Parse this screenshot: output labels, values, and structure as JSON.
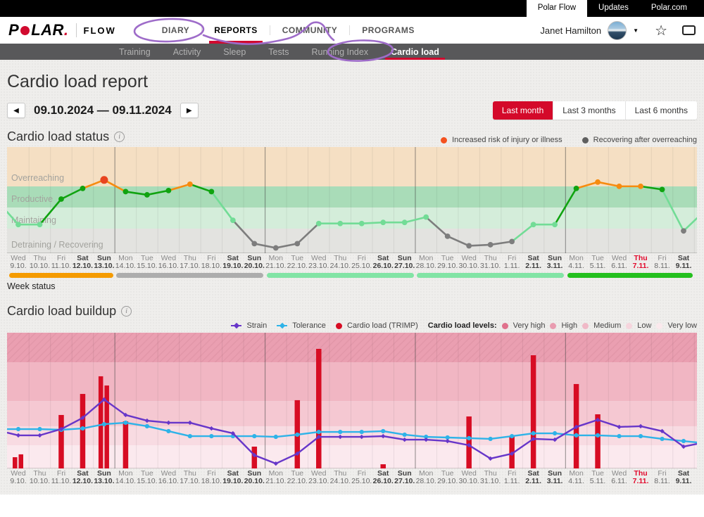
{
  "topbar": {
    "tabs": [
      "Polar Flow",
      "Updates",
      "Polar.com"
    ]
  },
  "header": {
    "logo_p": "P",
    "logo_rest": "LAR",
    "logo_dot": ".",
    "brand_sub": "FLOW",
    "nav": [
      {
        "label": "DIARY",
        "active": false
      },
      {
        "label": "REPORTS",
        "active": true
      },
      {
        "label": "COMMUNITY",
        "active": false
      },
      {
        "label": "PROGRAMS",
        "active": false
      }
    ],
    "user": "Janet Hamilton"
  },
  "icons": {
    "prev": "◀",
    "next": "▶",
    "star": "☆",
    "dropdown": "▼",
    "info": "i"
  },
  "subnav": {
    "items": [
      {
        "label": "Training",
        "active": false
      },
      {
        "label": "Activity",
        "active": false
      },
      {
        "label": "Sleep",
        "active": false
      },
      {
        "label": "Tests",
        "active": false
      },
      {
        "label": "Running Index",
        "active": false
      },
      {
        "label": "Cardio load",
        "active": true
      }
    ]
  },
  "page": {
    "title": "Cardio load report"
  },
  "daterange": {
    "value": "09.10.2024 — 09.11.2024"
  },
  "range_buttons": [
    {
      "label": "Last month",
      "active": true
    },
    {
      "label": "Last 3 months",
      "active": false
    },
    {
      "label": "Last 6 months",
      "active": false
    }
  ],
  "status_section": {
    "title": "Cardio load status",
    "legend": [
      {
        "label": "Increased risk of injury or illness",
        "color": "#f4511e"
      },
      {
        "label": "Recovering after overreaching",
        "color": "#5f5f5f"
      }
    ],
    "week_status_label": "Week status"
  },
  "buildup_section": {
    "title": "Cardio load buildup",
    "series_legend": [
      {
        "label": "Strain",
        "color": "#6736c9"
      },
      {
        "label": "Tolerance",
        "color": "#2eb3e8"
      },
      {
        "label": "Cardio load (TRIMP)",
        "color": "#d70c23"
      }
    ],
    "levels_label": "Cardio load levels:",
    "levels": [
      {
        "label": "Very high",
        "color": "#e0718c"
      },
      {
        "label": "High",
        "color": "#e99cb0"
      },
      {
        "label": "Medium",
        "color": "#f0b9c7"
      },
      {
        "label": "Low",
        "color": "#f6d5dd"
      },
      {
        "label": "Very low",
        "color": "#fbe9ed"
      }
    ]
  },
  "status_palette": {
    "light": "#72dc96",
    "green": "#10a310",
    "orange": "#f68b0f",
    "risk": "#e8441f",
    "gray": "#7d7d7d"
  },
  "chart_data": [
    {
      "type": "line",
      "title": "Cardio load status",
      "ylim": [
        0,
        100
      ],
      "today_index": 29,
      "categories": [
        "Wed 9.10.",
        "Thu 10.10.",
        "Fri 11.10.",
        "Sat 12.10.",
        "Sun 13.10.",
        "Mon 14.10.",
        "Tue 15.10.",
        "Wed 16.10.",
        "Thu 17.10.",
        "Fri 18.10.",
        "Sat 19.10.",
        "Sun 20.10.",
        "Mon 21.10.",
        "Tue 22.10.",
        "Wed 23.10.",
        "Thu 24.10.",
        "Fri 25.10.",
        "Sat 26.10.",
        "Sun 27.10.",
        "Mon 28.10.",
        "Tue 29.10.",
        "Wed 30.10.",
        "Thu 31.10.",
        "Fri 1.11.",
        "Sat 2.11.",
        "Sun 3.11.",
        "Mon 4.11.",
        "Tue 5.11.",
        "Wed 6.11.",
        "Thu 7.11.",
        "Fri 8.11.",
        "Sat 9.11."
      ],
      "bands": [
        {
          "label": "Overreaching",
          "from": 62.9,
          "to": 100,
          "color": "#f5dfc3"
        },
        {
          "label": "Productive",
          "from": 43,
          "to": 62.9,
          "color": "#a9dcb8"
        },
        {
          "label": "Maintaining",
          "from": 23.2,
          "to": 43,
          "color": "#d4edda"
        },
        {
          "label": "Detraining / Recovering",
          "from": 0,
          "to": 23.2,
          "color": "#e3e3e0"
        }
      ],
      "series": [
        {
          "name": "Cardio load status",
          "values": [
            27,
            27,
            51,
            61,
            69,
            58,
            55,
            59,
            65,
            58,
            31,
            9,
            5,
            9,
            28,
            28,
            28,
            29,
            29,
            34,
            16,
            7,
            8,
            11,
            27,
            27,
            61,
            67,
            63,
            63,
            60,
            21
          ],
          "point_colors": [
            "light",
            "light",
            "green",
            "green",
            "risk",
            "green",
            "green",
            "green",
            "orange",
            "green",
            "light",
            "gray",
            "gray",
            "gray",
            "light",
            "light",
            "light",
            "light",
            "light",
            "light",
            "gray",
            "gray",
            "gray",
            "gray",
            "light",
            "light",
            "green",
            "orange",
            "orange",
            "orange",
            "green",
            "gray"
          ],
          "segment_colors": [
            "light",
            "light",
            "green",
            "green",
            "orange",
            "orange",
            "green",
            "green",
            "orange",
            "green",
            "light",
            "gray",
            "gray",
            "gray",
            "gray",
            "light",
            "light",
            "light",
            "light",
            "light",
            "gray",
            "gray",
            "gray",
            "gray",
            "light",
            "light",
            "green",
            "orange",
            "orange",
            "orange",
            "green",
            "light",
            "light"
          ],
          "edge_start": 39,
          "edge_end": 33
        }
      ],
      "week_status": [
        {
          "from": 0,
          "to": 4,
          "color": "#f59b00"
        },
        {
          "from": 5,
          "to": 11,
          "color": "#adadad"
        },
        {
          "from": 12,
          "to": 18,
          "color": "#82e4a5"
        },
        {
          "from": 19,
          "to": 25,
          "color": "#82e4a5"
        },
        {
          "from": 26,
          "to": 31,
          "color": "#24c01e"
        }
      ]
    },
    {
      "type": "bar",
      "title": "Cardio load buildup",
      "ylim": [
        0,
        100
      ],
      "today_index": 29,
      "categories": [
        "Wed 9.10.",
        "Thu 10.10.",
        "Fri 11.10.",
        "Sat 12.10.",
        "Sun 13.10.",
        "Mon 14.10.",
        "Tue 15.10.",
        "Wed 16.10.",
        "Thu 17.10.",
        "Fri 18.10.",
        "Sat 19.10.",
        "Sun 20.10.",
        "Mon 21.10.",
        "Tue 22.10.",
        "Wed 23.10.",
        "Thu 24.10.",
        "Fri 25.10.",
        "Sat 26.10.",
        "Sun 27.10.",
        "Mon 28.10.",
        "Tue 29.10.",
        "Wed 30.10.",
        "Thu 31.10.",
        "Fri 1.11.",
        "Sat 2.11.",
        "Sun 3.11.",
        "Mon 4.11.",
        "Tue 5.11.",
        "Wed 6.11.",
        "Thu 7.11.",
        "Fri 8.11.",
        "Sat 9.11."
      ],
      "bands": [
        {
          "label": "Very high",
          "from": 78.2,
          "to": 100,
          "color": "#ea9fb1"
        },
        {
          "label": "High",
          "from": 49.7,
          "to": 78.2,
          "color": "#f1b6c3"
        },
        {
          "label": "Medium",
          "from": 31.1,
          "to": 49.7,
          "color": "#f5c8d2"
        },
        {
          "label": "Low",
          "from": 17.1,
          "to": 31.1,
          "color": "#f8dbe2"
        },
        {
          "label": "Very low",
          "from": 0,
          "to": 17.1,
          "color": "#fbe9ee"
        }
      ],
      "bars": {
        "name": "Cardio load (TRIMP)",
        "color": "#d70c23",
        "values": [
          {
            "day": 0,
            "pct": [
              8.3,
              10.4
            ]
          },
          {
            "day": 2,
            "pct": [
              39.4
            ]
          },
          {
            "day": 3,
            "pct": [
              54.9
            ]
          },
          {
            "day": 4,
            "pct": [
              67.9,
              61.1
            ]
          },
          {
            "day": 5,
            "pct": [
              34.7
            ]
          },
          {
            "day": 11,
            "pct": [
              16.1
            ]
          },
          {
            "day": 13,
            "pct": [
              50.3
            ]
          },
          {
            "day": 14,
            "pct": [
              88.1
            ]
          },
          {
            "day": 17,
            "pct": [
              3.1
            ]
          },
          {
            "day": 21,
            "pct": [
              38.3
            ]
          },
          {
            "day": 23,
            "pct": [
              23.8
            ]
          },
          {
            "day": 24,
            "pct": [
              83.4
            ]
          },
          {
            "day": 26,
            "pct": [
              62.2
            ]
          },
          {
            "day": 27,
            "pct": [
              39.9
            ]
          }
        ]
      },
      "series": [
        {
          "name": "Strain",
          "color": "#6736c9",
          "values": [
            24.4,
            24.4,
            29,
            37.3,
            50.8,
            39.4,
            35.2,
            33.7,
            33.7,
            29.5,
            25.9,
            9.8,
            3.6,
            10.9,
            23.3,
            23.3,
            23.3,
            23.8,
            21.2,
            21.2,
            20.2,
            17.1,
            7.3,
            10.9,
            21.8,
            21.2,
            30.6,
            35.8,
            30.6,
            31.1,
            27.5,
            16.1
          ],
          "edge_start": 26.4,
          "edge_end": 18.1
        },
        {
          "name": "Tolerance",
          "color": "#2eb3e8",
          "values": [
            29,
            29,
            28.5,
            29.5,
            32.6,
            33.7,
            31.1,
            27.5,
            23.8,
            23.8,
            23.8,
            23.8,
            23.3,
            24.9,
            26.9,
            26.9,
            26.9,
            27.5,
            24.9,
            23.3,
            22.8,
            22.3,
            21.8,
            23.8,
            25.9,
            25.9,
            24.4,
            24.4,
            23.8,
            23.8,
            21.8,
            20.2
          ],
          "edge_start": 29,
          "edge_end": 19.2
        }
      ]
    }
  ]
}
